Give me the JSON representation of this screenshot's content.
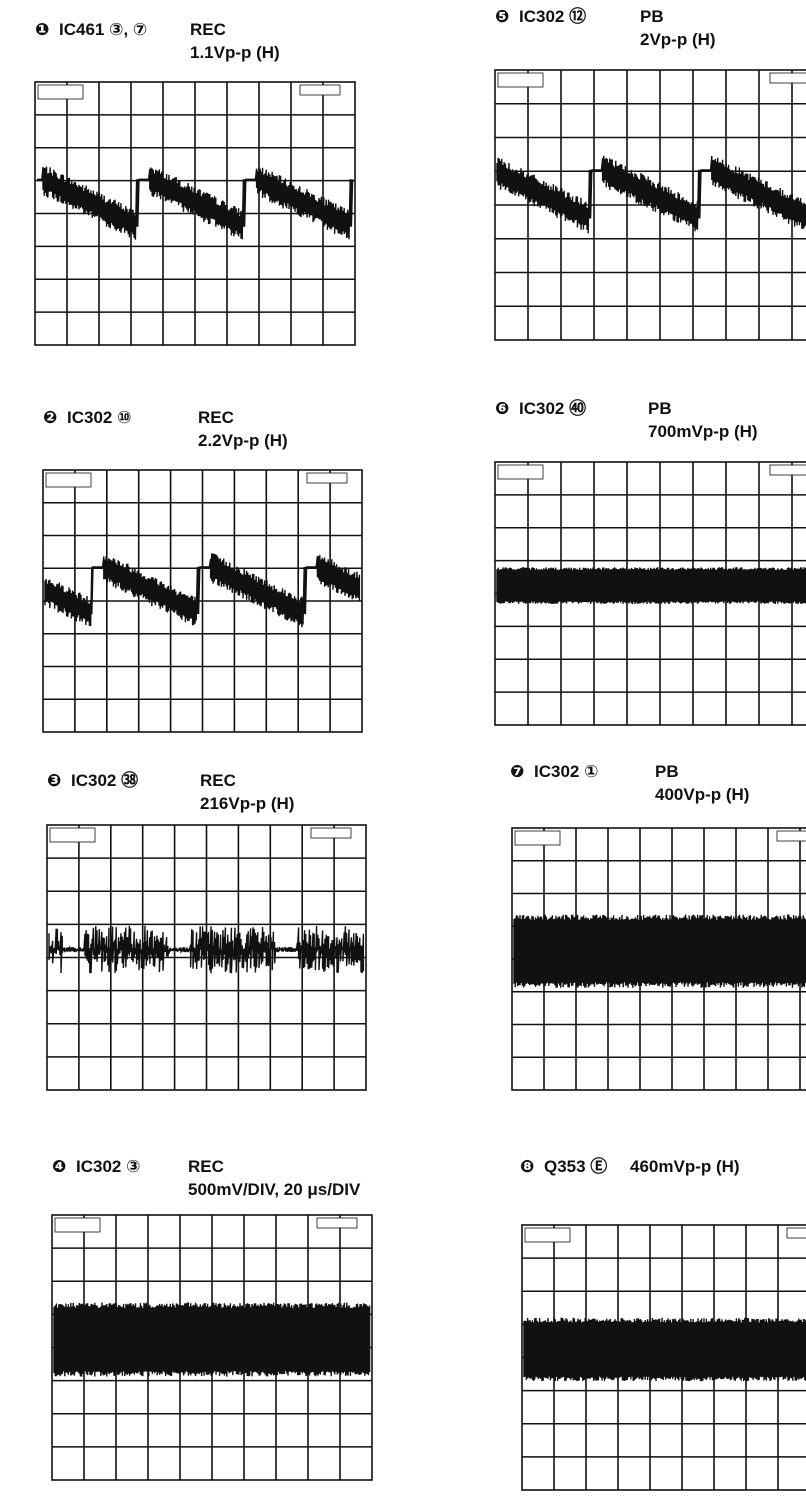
{
  "panels": [
    {
      "marker": "❶",
      "location": "IC461 ③, ⑦",
      "mode": "REC",
      "level": "1.1Vp-p (H)"
    },
    {
      "marker": "❷",
      "location": "IC302 ⑩",
      "mode": "REC",
      "level": "2.2Vp-p (H)"
    },
    {
      "marker": "❸",
      "location": "IC302 ㊳",
      "mode": "REC",
      "level": "216Vp-p (H)"
    },
    {
      "marker": "❹",
      "location": "IC302 ③",
      "mode": "REC",
      "level": "500mV/DIV, 20 μs/DIV"
    },
    {
      "marker": "❺",
      "location": "IC302 ⑫",
      "mode": "PB",
      "level": "2Vp-p (H)"
    },
    {
      "marker": "❻",
      "location": "IC302 ㊵",
      "mode": "PB",
      "level": "700mVp-p (H)"
    },
    {
      "marker": "❼",
      "location": "IC302 ①",
      "mode": "PB",
      "level": "400Vp-p (H)"
    },
    {
      "marker": "❽",
      "location": "Q353 Ⓔ",
      "level": "460mVp-p (H)"
    }
  ]
}
